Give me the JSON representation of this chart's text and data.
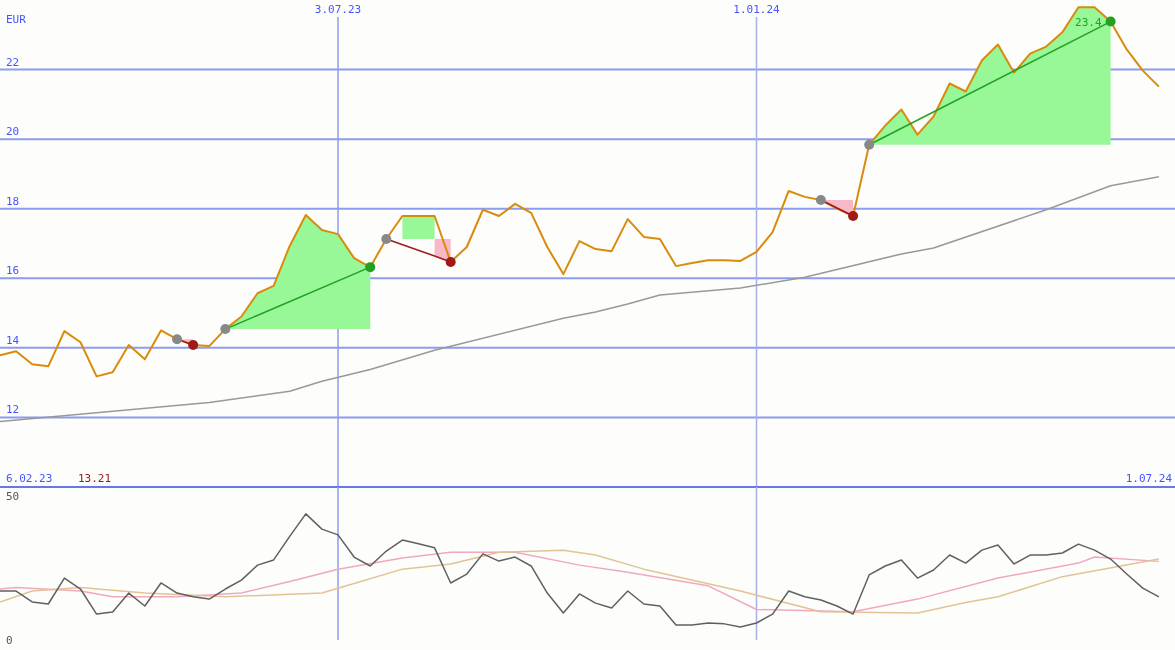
{
  "chart_data": [
    {
      "type": "line",
      "ylabel": "EUR",
      "grid": "y",
      "x": [
        "2023-02-06",
        "2023-02-13",
        "2023-02-20",
        "2023-02-27",
        "2023-03-06",
        "2023-03-13",
        "2023-03-20",
        "2023-03-27",
        "2023-04-03",
        "2023-04-10",
        "2023-04-17",
        "2023-04-24",
        "2023-05-01",
        "2023-05-08",
        "2023-05-15",
        "2023-05-22",
        "2023-05-29",
        "2023-06-05",
        "2023-06-12",
        "2023-06-19",
        "2023-06-26",
        "2023-07-03",
        "2023-07-10",
        "2023-07-17",
        "2023-07-24",
        "2023-07-31",
        "2023-08-07",
        "2023-08-14",
        "2023-08-21",
        "2023-08-28",
        "2023-09-04",
        "2023-09-11",
        "2023-09-18",
        "2023-09-25",
        "2023-10-02",
        "2023-10-09",
        "2023-10-16",
        "2023-10-23",
        "2023-10-30",
        "2023-11-06",
        "2023-11-13",
        "2023-11-20",
        "2023-11-27",
        "2023-12-04",
        "2023-12-11",
        "2023-12-18",
        "2023-12-25",
        "2024-01-01",
        "2024-01-08",
        "2024-01-15",
        "2024-01-22",
        "2024-01-29",
        "2024-02-05",
        "2024-02-12",
        "2024-02-19",
        "2024-02-26",
        "2024-03-04",
        "2024-03-11",
        "2024-03-18",
        "2024-03-25",
        "2024-04-01",
        "2024-04-08",
        "2024-04-15",
        "2024-04-22",
        "2024-04-29",
        "2024-05-06",
        "2024-05-13",
        "2024-05-20",
        "2024-05-27",
        "2024-06-03",
        "2024-06-10",
        "2024-06-17",
        "2024-06-24"
      ],
      "xlim": [
        "2023-02-06",
        "2024-07-01"
      ],
      "xticks": [
        {
          "value": "2023-07-03",
          "label": "3.07.23"
        },
        {
          "value": "2024-01-01",
          "label": "1.01.24"
        }
      ],
      "ylim": [
        10,
        24
      ],
      "yticks": [
        12,
        14,
        16,
        18,
        20,
        22
      ],
      "ref_lines": [
        {
          "axis": "x",
          "value": "2023-07-03",
          "color": "#8c9cf0"
        },
        {
          "axis": "x",
          "value": "2024-01-01",
          "color": "#a8b0e8"
        }
      ],
      "series": [
        {
          "color": "#999999",
          "x": [
            "2023-02-06",
            "2023-05-08",
            "2023-06-12",
            "2023-06-26",
            "2023-07-17",
            "2023-08-14",
            "2023-10-09",
            "2023-10-23",
            "2023-11-06",
            "2023-11-20",
            "2023-12-25",
            "2024-01-22",
            "2024-03-04",
            "2024-03-18",
            "2024-05-06",
            "2024-06-03",
            "2024-06-24"
          ],
          "values": [
            11.88,
            12.43,
            12.75,
            13.04,
            13.38,
            13.93,
            14.85,
            15.03,
            15.26,
            15.52,
            15.72,
            16.03,
            16.7,
            16.87,
            17.97,
            18.66,
            18.92
          ]
        },
        {
          "color": "#d98c0c",
          "values": [
            13.79,
            13.9,
            13.53,
            13.47,
            14.48,
            14.16,
            13.18,
            13.3,
            14.08,
            13.67,
            14.5,
            14.25,
            14.08,
            14.05,
            14.54,
            14.9,
            15.57,
            15.78,
            16.93,
            17.82,
            17.39,
            17.27,
            16.58,
            16.32,
            17.13,
            17.79,
            17.79,
            17.79,
            16.47,
            16.9,
            17.97,
            17.79,
            18.14,
            17.88,
            16.9,
            16.12,
            17.07,
            16.84,
            16.78,
            17.7,
            17.19,
            17.13,
            16.35,
            16.44,
            16.52,
            16.52,
            16.5,
            16.76,
            17.33,
            18.51,
            18.34,
            18.25,
            18.0,
            17.79,
            19.84,
            20.39,
            20.85,
            20.13,
            20.65,
            21.6,
            21.37,
            22.26,
            22.72,
            21.91,
            22.46,
            22.66,
            23.07,
            23.79,
            23.79,
            23.38,
            22.58,
            21.97,
            21.51
          ],
          "lower": [
            null,
            null,
            null,
            null,
            null,
            null,
            null,
            null,
            null,
            null,
            null,
            null,
            null,
            null,
            14.54,
            14.54,
            14.54,
            14.54,
            14.54,
            14.54,
            14.54,
            14.54,
            14.54,
            14.54,
            null,
            17.13,
            17.13,
            17.13,
            null,
            null,
            null,
            null,
            null,
            null,
            null,
            null,
            null,
            null,
            null,
            null,
            null,
            null,
            null,
            null,
            null,
            null,
            null,
            null,
            null,
            null,
            null,
            null,
            null,
            null,
            19.84,
            19.84,
            19.84,
            19.84,
            19.84,
            19.84,
            19.84,
            19.84,
            19.84,
            19.84,
            19.84,
            19.84,
            19.84,
            19.84,
            19.84,
            19.84,
            null,
            null,
            null
          ],
          "upper": [
            null,
            null,
            null,
            null,
            null,
            null,
            null,
            null,
            null,
            null,
            null,
            null,
            null,
            null,
            14.54,
            14.9,
            15.57,
            15.78,
            16.93,
            17.82,
            17.39,
            17.27,
            16.58,
            16.32,
            null,
            17.79,
            17.79,
            17.79,
            null,
            null,
            null,
            null,
            null,
            null,
            null,
            null,
            null,
            null,
            null,
            null,
            null,
            null,
            null,
            null,
            null,
            null,
            null,
            null,
            null,
            null,
            null,
            null,
            null,
            null,
            19.84,
            20.39,
            20.85,
            20.13,
            20.65,
            21.6,
            21.37,
            22.26,
            22.72,
            21.91,
            22.46,
            22.66,
            23.07,
            23.79,
            23.79,
            23.38,
            null,
            null,
            null
          ]
        },
        {
          "color": "#a01818",
          "x": [
            "2023-04-24",
            "2023-05-01",
            "2023-05-08",
            "2023-07-24",
            "2023-08-14",
            "2023-08-21",
            "2023-08-28",
            "2024-01-29",
            "2024-02-05",
            "2024-02-12"
          ],
          "values": [
            14.25,
            14.08,
            null,
            17.13,
            16.64,
            16.47,
            null,
            18.25,
            18.02,
            17.79
          ],
          "lower": [
            14.25,
            14.08,
            null,
            null,
            16.64,
            16.47,
            null,
            18.25,
            18.0,
            17.79
          ],
          "upper": [
            14.25,
            14.25,
            null,
            null,
            17.13,
            17.13,
            null,
            18.25,
            18.25,
            18.25
          ]
        },
        {
          "color": "#22a022",
          "x": [
            "2023-05-15",
            "2023-07-17",
            "2023-07-24",
            "2024-02-19",
            "2024-06-03"
          ],
          "values": [
            14.54,
            16.32,
            null,
            19.84,
            23.38
          ]
        },
        {
          "type": "scatter",
          "x": [
            "2023-04-24",
            "2023-05-01",
            "2023-05-15",
            "2023-07-17",
            "2023-07-24",
            "2023-08-21",
            "2024-01-29",
            "2024-02-12",
            "2024-02-19",
            "2024-06-03"
          ],
          "values": [
            14.25,
            14.08,
            14.54,
            16.32,
            17.13,
            16.47,
            18.25,
            17.79,
            19.84,
            23.38
          ],
          "colors": [
            "#888888",
            "#a01818",
            "#888888",
            "#22a022",
            "#888888",
            "#a01818",
            "#888888",
            "#a01818",
            "#888888",
            "#22a022"
          ]
        }
      ],
      "annotations": [
        "6.02.23",
        "13.21",
        "1.07.24",
        {
          "text": "23.4",
          "x": "2024-06-03",
          "y": 23.38
        }
      ]
    },
    {
      "type": "line",
      "tick_labels": "y",
      "x": [
        "2023-02-06",
        "2023-02-13",
        "2023-02-20",
        "2023-02-27",
        "2023-03-06",
        "2023-03-13",
        "2023-03-20",
        "2023-03-27",
        "2023-04-03",
        "2023-04-10",
        "2023-04-17",
        "2023-04-24",
        "2023-05-01",
        "2023-05-08",
        "2023-05-15",
        "2023-05-22",
        "2023-05-29",
        "2023-06-05",
        "2023-06-12",
        "2023-06-19",
        "2023-06-26",
        "2023-07-03",
        "2023-07-10",
        "2023-07-17",
        "2023-07-24",
        "2023-07-31",
        "2023-08-07",
        "2023-08-14",
        "2023-08-21",
        "2023-08-28",
        "2023-09-04",
        "2023-09-11",
        "2023-09-18",
        "2023-09-25",
        "2023-10-02",
        "2023-10-09",
        "2023-10-16",
        "2023-10-23",
        "2023-10-30",
        "2023-11-06",
        "2023-11-13",
        "2023-11-20",
        "2023-11-27",
        "2023-12-04",
        "2023-12-11",
        "2023-12-18",
        "2023-12-25",
        "2024-01-01",
        "2024-01-08",
        "2024-01-15",
        "2024-01-22",
        "2024-01-29",
        "2024-02-05",
        "2024-02-12",
        "2024-02-19",
        "2024-02-26",
        "2024-03-04",
        "2024-03-11",
        "2024-03-18",
        "2024-03-25",
        "2024-04-01",
        "2024-04-08",
        "2024-04-15",
        "2024-04-22",
        "2024-04-29",
        "2024-05-06",
        "2024-05-13",
        "2024-05-20",
        "2024-05-27",
        "2024-06-03",
        "2024-06-10",
        "2024-06-17",
        "2024-06-24"
      ],
      "xlim": [
        "2023-02-06",
        "2024-07-01"
      ],
      "ylim": [
        0,
        50
      ],
      "yticks": [
        0,
        50
      ],
      "ref_lines": [
        {
          "axis": "x",
          "value": "2023-07-03",
          "color": "#8c9cf0"
        },
        {
          "axis": "x",
          "value": "2024-01-01",
          "color": "#a8b0e8"
        }
      ],
      "series": [
        {
          "color": "#f0a8c0",
          "x": [
            "2023-02-06",
            "2023-02-13",
            "2023-03-13",
            "2023-03-27",
            "2023-04-24",
            "2023-05-22",
            "2023-06-12",
            "2023-07-03",
            "2023-07-31",
            "2023-08-21",
            "2023-09-18",
            "2023-10-16",
            "2023-11-06",
            "2023-12-11",
            "2024-01-01",
            "2024-02-12",
            "2024-03-11",
            "2024-04-15",
            "2024-05-20",
            "2024-05-27",
            "2024-06-24"
          ],
          "values": [
            17.7,
            18.2,
            17,
            15,
            15,
            16.3,
            20.3,
            24.6,
            28.5,
            30.5,
            30.5,
            26,
            23.5,
            18.8,
            10.6,
            9.8,
            14.2,
            21.5,
            26.7,
            28.8,
            27.3
          ]
        },
        {
          "color": "#e0c494",
          "x": [
            "2023-02-06",
            "2023-02-20",
            "2023-03-13",
            "2023-04-10",
            "2023-05-15",
            "2023-06-26",
            "2023-07-10",
            "2023-07-31",
            "2023-08-21",
            "2023-09-11",
            "2023-10-09",
            "2023-10-23",
            "2023-11-13",
            "2023-12-25",
            "2024-01-29",
            "2024-03-11",
            "2024-04-01",
            "2024-04-15",
            "2024-05-13",
            "2024-06-24"
          ],
          "values": [
            13.2,
            17,
            18.2,
            16.3,
            15,
            16.3,
            19.6,
            24.6,
            26.4,
            30.5,
            31.2,
            29.5,
            24.6,
            17,
            9.8,
            9.4,
            13,
            15,
            22,
            28.1
          ]
        },
        {
          "color": "#606060",
          "values": [
            17,
            17,
            13.2,
            12.5,
            21.5,
            17.7,
            9,
            9.7,
            16.3,
            11.8,
            19.8,
            16.3,
            15,
            14.2,
            17.7,
            20.8,
            26,
            27.8,
            36,
            43.8,
            38.5,
            36.5,
            28.8,
            25.7,
            30.9,
            34.7,
            33.4,
            32,
            19.8,
            22.9,
            29.9,
            27.4,
            28.8,
            25.7,
            16.3,
            9.4,
            16,
            12.8,
            11.1,
            17,
            12.5,
            11.8,
            5.2,
            5.2,
            5.9,
            5.6,
            4.5,
            5.9,
            9,
            17,
            15,
            13.9,
            11.8,
            9,
            22.6,
            25.7,
            27.8,
            21.5,
            24.3,
            29.5,
            26.7,
            31.2,
            33,
            26.4,
            29.5,
            29.5,
            30.2,
            33.3,
            31.2,
            28.1,
            22.9,
            18,
            15
          ]
        }
      ]
    }
  ]
}
